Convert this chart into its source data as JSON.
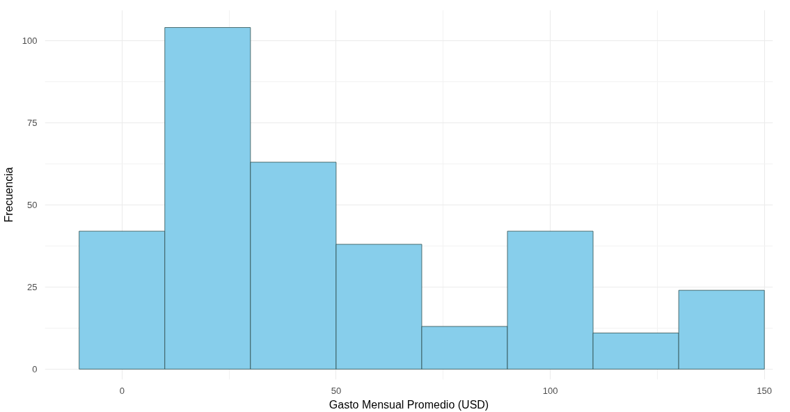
{
  "chart_data": {
    "type": "histogram",
    "xlabel": "Gasto Mensual Promedio (USD)",
    "ylabel": "Frecuencia",
    "bins": [
      -10,
      10,
      30,
      50,
      70,
      90,
      110,
      130,
      150
    ],
    "values": [
      42,
      104,
      63,
      38,
      13,
      42,
      11,
      24
    ],
    "color": "#87ceeb",
    "xlim": [
      -18,
      152
    ],
    "ylim": [
      -3.2,
      109.3
    ],
    "xticks": [
      0,
      50,
      100,
      150
    ],
    "yticks": [
      0,
      25,
      50,
      75,
      100
    ],
    "grid": true
  }
}
